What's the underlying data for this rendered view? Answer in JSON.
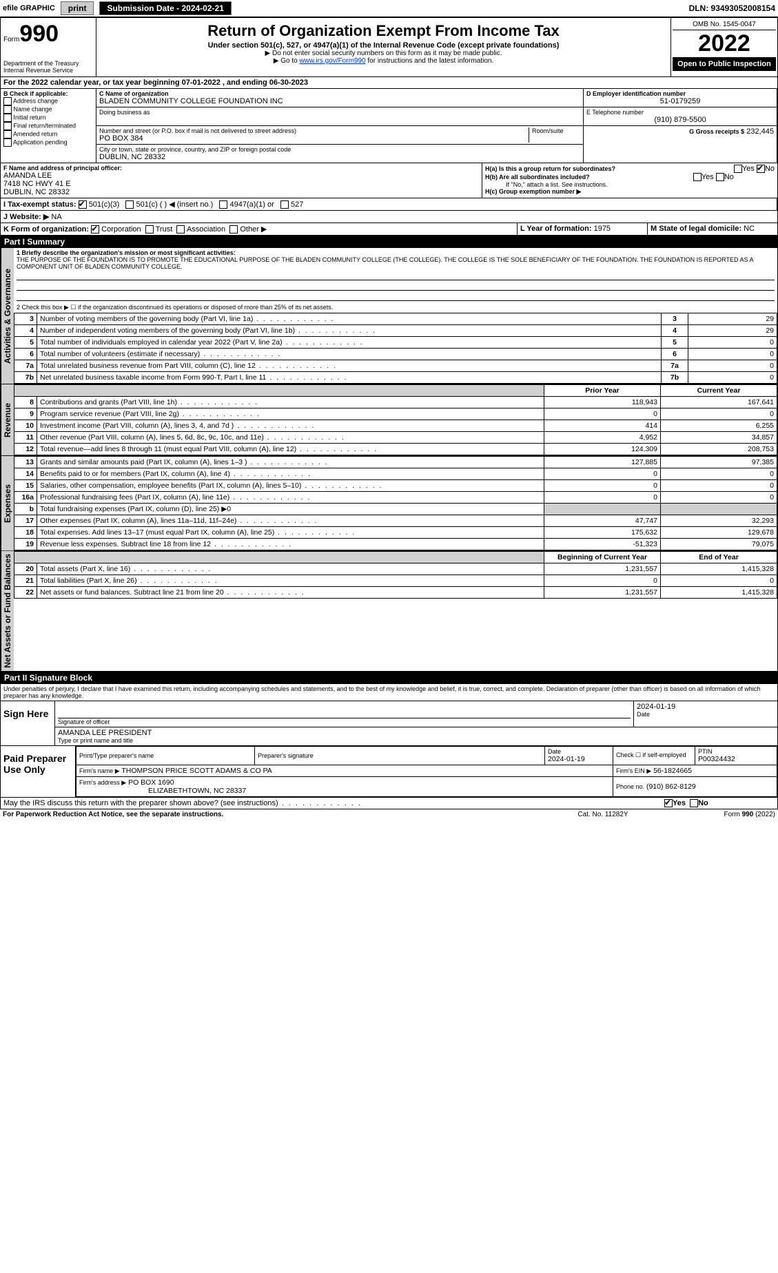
{
  "efile": {
    "graphic_label": "efile GRAPHIC",
    "print_btn": "print",
    "submission_label": "Submission Date - 2024-02-21",
    "dln": "DLN: 93493052008154"
  },
  "header": {
    "form_word": "Form",
    "form_num": "990",
    "dept": "Department of the Treasury",
    "irs": "Internal Revenue Service",
    "title": "Return of Organization Exempt From Income Tax",
    "sub1": "Under section 501(c), 527, or 4947(a)(1) of the Internal Revenue Code (except private foundations)",
    "sub2_prefix": "▶ Do not enter social security numbers on this form as it may be made public.",
    "sub3_prefix": "▶ Go to ",
    "sub3_link": "www.irs.gov/Form990",
    "sub3_suffix": " for instructions and the latest information.",
    "omb": "OMB No. 1545-0047",
    "year": "2022",
    "open": "Open to Public Inspection"
  },
  "lineA": "For the 2022 calendar year, or tax year beginning 07-01-2022    , and ending 06-30-2023",
  "B": {
    "label": "B Check if applicable:",
    "addr": "Address change",
    "name": "Name change",
    "init": "Initial return",
    "final": "Final return/terminated",
    "amend": "Amended return",
    "app": "Application pending"
  },
  "C": {
    "label": "C Name of organization",
    "org": "BLADEN COMMUNITY COLLEGE FOUNDATION INC",
    "dba_label": "Doing business as",
    "street_label": "Number and street (or P.O. box if mail is not delivered to street address)",
    "room_label": "Room/suite",
    "street": "PO BOX 384",
    "city_label": "City or town, state or province, country, and ZIP or foreign postal code",
    "city": "DUBLIN, NC  28332"
  },
  "D": {
    "label": "D Employer identification number",
    "ein": "51-0179259"
  },
  "E": {
    "label": "E Telephone number",
    "phone": "(910) 879-5500"
  },
  "G": {
    "label": "G Gross receipts $",
    "val": "232,445"
  },
  "F": {
    "label": "F  Name and address of principal officer:",
    "name": "AMANDA LEE",
    "addr1": "7418 NC HWY 41 E",
    "addr2": "DUBLIN, NC  28332"
  },
  "H": {
    "a": "H(a)  Is this a group return for subordinates?",
    "b": "H(b)  Are all subordinates included?",
    "b_note": "If \"No,\" attach a list. See instructions.",
    "c": "H(c)  Group exemption number ▶",
    "yes": "Yes",
    "no": "No"
  },
  "I": {
    "label": "I    Tax-exempt status:",
    "a": "501(c)(3)",
    "b": "501(c) (   ) ◀ (insert no.)",
    "c": "4947(a)(1) or",
    "d": "527"
  },
  "J": {
    "label": "J   Website: ▶",
    "val": "NA"
  },
  "K": {
    "label": "K Form of organization:",
    "corp": "Corporation",
    "trust": "Trust",
    "assoc": "Association",
    "other": "Other ▶"
  },
  "L": {
    "label": "L Year of formation:",
    "val": "1975"
  },
  "M": {
    "label": "M State of legal domicile:",
    "val": "NC"
  },
  "part1": {
    "hdr": "Part I      Summary",
    "tab_gov": "Activities & Governance",
    "tab_rev": "Revenue",
    "tab_exp": "Expenses",
    "tab_net": "Net Assets or Fund Balances",
    "l1_label": "1  Briefly describe the organization's mission or most significant activities:",
    "l1_text": "THE PURPOSE OF THE FOUNDATION IS TO PROMOTE THE EDUCATIONAL PURPOSE OF THE BLADEN COMMUNITY COLLEGE (THE COLLEGE). THE COLLEGE IS THE SOLE BENEFICIARY OF THE FOUNDATION. THE FOUNDATION IS REPORTED AS A COMPONENT UNIT OF BLADEN COMMUNITY COLLEGE.",
    "l2": "2   Check this box ▶ ☐  if the organization discontinued its operations or disposed of more than 25% of its net assets.",
    "rows_gov": [
      {
        "n": "3",
        "t": "Number of voting members of the governing body (Part VI, line 1a)",
        "box": "3",
        "v": "29"
      },
      {
        "n": "4",
        "t": "Number of independent voting members of the governing body (Part VI, line 1b)",
        "box": "4",
        "v": "29"
      },
      {
        "n": "5",
        "t": "Total number of individuals employed in calendar year 2022 (Part V, line 2a)",
        "box": "5",
        "v": "0"
      },
      {
        "n": "6",
        "t": "Total number of volunteers (estimate if necessary)",
        "box": "6",
        "v": "0"
      },
      {
        "n": "7a",
        "t": "Total unrelated business revenue from Part VIII, column (C), line 12",
        "box": "7a",
        "v": "0"
      },
      {
        "n": "7b",
        "t": "Net unrelated business taxable income from Form 990-T, Part I, line 11",
        "box": "7b",
        "v": "0"
      }
    ],
    "col_prior": "Prior Year",
    "col_cur": "Current Year",
    "rows_rev": [
      {
        "n": "8",
        "t": "Contributions and grants (Part VIII, line 1h)",
        "p": "118,943",
        "c": "167,641"
      },
      {
        "n": "9",
        "t": "Program service revenue (Part VIII, line 2g)",
        "p": "0",
        "c": "0"
      },
      {
        "n": "10",
        "t": "Investment income (Part VIII, column (A), lines 3, 4, and 7d )",
        "p": "414",
        "c": "6,255"
      },
      {
        "n": "11",
        "t": "Other revenue (Part VIII, column (A), lines 5, 6d, 8c, 9c, 10c, and 11e)",
        "p": "4,952",
        "c": "34,857"
      },
      {
        "n": "12",
        "t": "Total revenue—add lines 8 through 11 (must equal Part VIII, column (A), line 12)",
        "p": "124,309",
        "c": "208,753"
      }
    ],
    "rows_exp": [
      {
        "n": "13",
        "t": "Grants and similar amounts paid (Part IX, column (A), lines 1–3 )",
        "p": "127,885",
        "c": "97,385"
      },
      {
        "n": "14",
        "t": "Benefits paid to or for members (Part IX, column (A), line 4)",
        "p": "0",
        "c": "0"
      },
      {
        "n": "15",
        "t": "Salaries, other compensation, employee benefits (Part IX, column (A), lines 5–10)",
        "p": "0",
        "c": "0"
      },
      {
        "n": "16a",
        "t": "Professional fundraising fees (Part IX, column (A), line 11e)",
        "p": "0",
        "c": "0"
      },
      {
        "n": "b",
        "t": "Total fundraising expenses (Part IX, column (D), line 25) ▶0",
        "p": "",
        "c": "",
        "shade": true
      },
      {
        "n": "17",
        "t": "Other expenses (Part IX, column (A), lines 11a–11d, 11f–24e)",
        "p": "47,747",
        "c": "32,293"
      },
      {
        "n": "18",
        "t": "Total expenses. Add lines 13–17 (must equal Part IX, column (A), line 25)",
        "p": "175,632",
        "c": "129,678"
      },
      {
        "n": "19",
        "t": "Revenue less expenses. Subtract line 18 from line 12",
        "p": "-51,323",
        "c": "79,075"
      }
    ],
    "col_boy": "Beginning of Current Year",
    "col_eoy": "End of Year",
    "rows_net": [
      {
        "n": "20",
        "t": "Total assets (Part X, line 16)",
        "p": "1,231,557",
        "c": "1,415,328"
      },
      {
        "n": "21",
        "t": "Total liabilities (Part X, line 26)",
        "p": "0",
        "c": "0"
      },
      {
        "n": "22",
        "t": "Net assets or fund balances. Subtract line 21 from line 20",
        "p": "1,231,557",
        "c": "1,415,328"
      }
    ]
  },
  "part2": {
    "hdr": "Part II     Signature Block",
    "penalty": "Under penalties of perjury, I declare that I have examined this return, including accompanying schedules and statements, and to the best of my knowledge and belief, it is true, correct, and complete. Declaration of preparer (other than officer) is based on all information of which preparer has any knowledge.",
    "sign_here": "Sign Here",
    "sig_officer": "Signature of officer",
    "sig_date": "2024-01-19",
    "officer": "AMANDA LEE PRESIDENT",
    "type_name": "Type or print name and title",
    "paid": "Paid Preparer Use Only",
    "prep_name_label": "Print/Type preparer's name",
    "prep_sig_label": "Preparer's signature",
    "date_label": "Date",
    "date_val": "2024-01-19",
    "check_self": "Check ☐ if self-employed",
    "ptin_label": "PTIN",
    "ptin": "P00324432",
    "firm_name_label": "Firm's name     ▶",
    "firm_name": "THOMPSON PRICE SCOTT ADAMS & CO PA",
    "firm_ein_label": "Firm's EIN ▶",
    "firm_ein": "56-1824665",
    "firm_addr_label": "Firm's address ▶",
    "firm_addr1": "PO BOX 1690",
    "firm_addr2": "ELIZABETHTOWN, NC  28337",
    "phone_label": "Phone no.",
    "phone": "(910) 862-8129",
    "discuss": "May the IRS discuss this return with the preparer shown above? (see instructions)",
    "yes": "Yes",
    "no": "No"
  },
  "footer": {
    "left": "For Paperwork Reduction Act Notice, see the separate instructions.",
    "mid": "Cat. No. 11282Y",
    "right": "Form 990 (2022)"
  }
}
